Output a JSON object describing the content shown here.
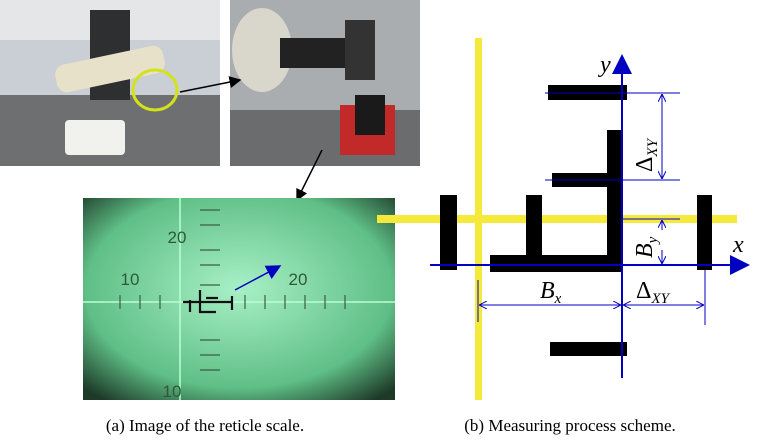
{
  "captions": {
    "a": "(a) Image of the reticle scale.",
    "b": "(b) Measuring process scheme."
  },
  "reticle": {
    "labels": [
      "20",
      "10",
      "20",
      "10"
    ]
  },
  "scheme": {
    "axis_y": "y",
    "axis_x": "x",
    "delta_vertical": {
      "symbol": "Δ",
      "subscript": "XY"
    },
    "b_y": {
      "symbol": "B",
      "subscript": "y"
    },
    "b_x": {
      "symbol": "B",
      "subscript": "x"
    },
    "delta_horizontal": {
      "symbol": "Δ",
      "subscript": "XY"
    }
  }
}
